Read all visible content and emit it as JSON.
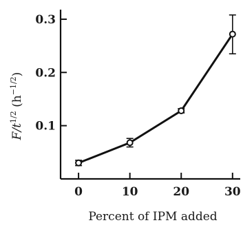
{
  "chart_data": {
    "type": "line",
    "xlabel": "Percent of IPM added",
    "ylabel_parts": [
      "F/t",
      "1/2",
      " (h",
      "−1/2",
      ")"
    ],
    "x_ticks": [
      0,
      10,
      20,
      30
    ],
    "x_tick_labels": [
      "0",
      "10",
      "20",
      "30"
    ],
    "y_ticks": [
      0.1,
      0.2,
      0.3
    ],
    "y_tick_labels": [
      "0.1",
      "0.2",
      "0.3"
    ],
    "xlim": [
      -3.5,
      31.5
    ],
    "ylim": [
      0.0,
      0.318
    ],
    "grid": false,
    "series": [
      {
        "x": [
          0,
          10,
          20,
          30
        ],
        "values": [
          0.03,
          0.068,
          0.128,
          0.272
        ],
        "error_low": [
          0.025,
          0.06,
          0.124,
          0.235
        ],
        "error_high": [
          0.035,
          0.076,
          0.132,
          0.308
        ]
      }
    ]
  }
}
